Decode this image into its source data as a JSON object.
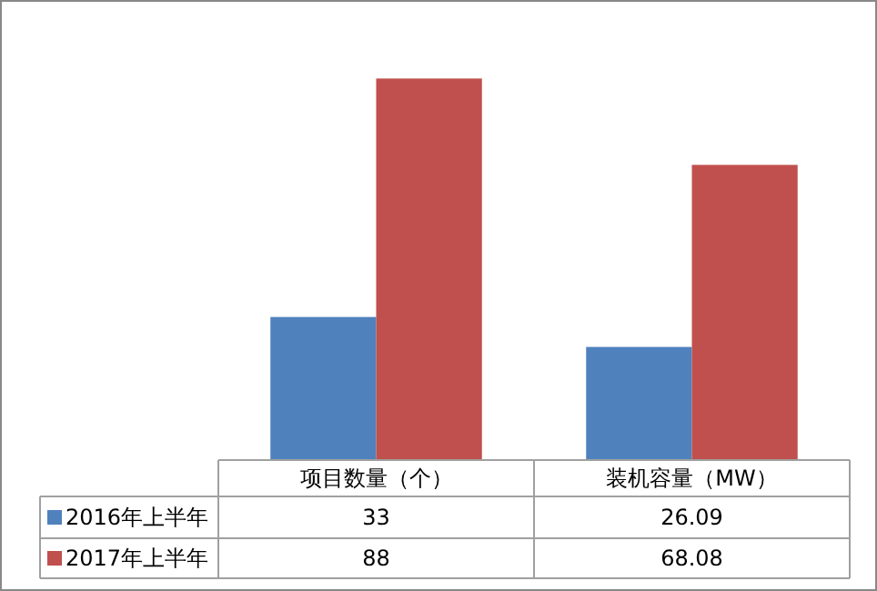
{
  "chart_data": {
    "type": "bar",
    "categories": [
      "项目数量（个）",
      "装机容量（MW）"
    ],
    "series": [
      {
        "name": "2016年上半年",
        "color": "#4f81bd",
        "values": [
          33,
          26.09
        ]
      },
      {
        "name": "2017年上半年",
        "color": "#c0504d",
        "values": [
          88,
          68.08
        ]
      }
    ],
    "data_labels": true,
    "legend": "bottom"
  }
}
